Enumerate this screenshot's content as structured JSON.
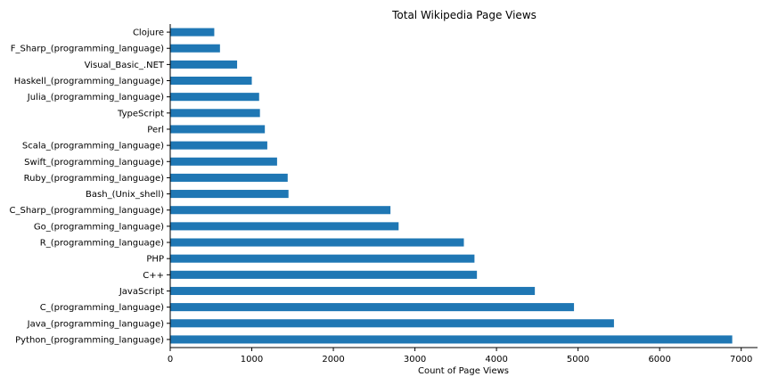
{
  "chart_data": {
    "type": "bar",
    "orientation": "horizontal",
    "title": "Total Wikipedia Page Views",
    "xlabel": "Count of Page Views",
    "ylabel": "",
    "xlim": [
      0,
      7200
    ],
    "x_ticks": [
      "0",
      "1000",
      "2000",
      "3000",
      "4000",
      "5000",
      "6000",
      "7000"
    ],
    "grid": false,
    "bar_color": "#1f77b4",
    "categories": [
      "Clojure",
      "F_Sharp_(programming_language)",
      "Visual_Basic_.NET",
      "Haskell_(programming_language)",
      "Julia_(programming_language)",
      "TypeScript",
      "Perl",
      "Scala_(programming_language)",
      "Swift_(programming_language)",
      "Ruby_(programming_language)",
      "Bash_(Unix_shell)",
      "C_Sharp_(programming_language)",
      "Go_(programming_language)",
      "R_(programming_language)",
      "PHP",
      "C++",
      "JavaScript",
      "C_(programming_language)",
      "Java_(programming_language)",
      "Python_(programming_language)"
    ],
    "values": [
      540,
      610,
      820,
      1000,
      1090,
      1100,
      1160,
      1190,
      1310,
      1440,
      1450,
      2700,
      2800,
      3600,
      3730,
      3760,
      4470,
      4950,
      5440,
      6890
    ]
  }
}
